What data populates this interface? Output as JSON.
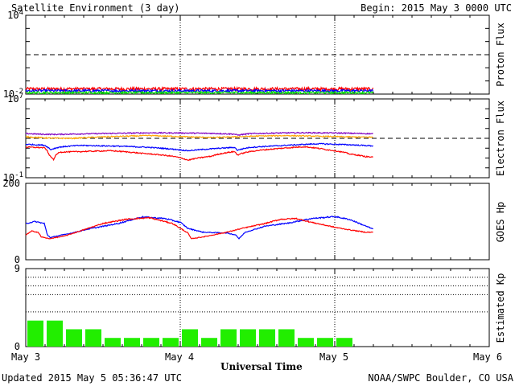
{
  "header": {
    "title": "Satellite Environment (3 day)",
    "begin": "Begin:  2015 May 3 0000 UTC"
  },
  "footer": {
    "updated": "Updated 2015 May  5 05:36:47 UTC",
    "credit": "NOAA/SWPC Boulder, CO USA"
  },
  "chart_data": [
    {
      "type": "line",
      "panel": "proton",
      "ylabel": "Proton Flux",
      "scale": "log",
      "ylim": [
        0.01,
        10000
      ],
      "yticks": [
        {
          "base": "10",
          "exp": "4"
        },
        {
          "base": "10",
          "exp": "-2"
        }
      ],
      "threshold": 10,
      "x_unit": "days since 2015 May 3 0000 UTC",
      "x_end": 2.25,
      "series": [
        {
          "color": "#ff0000",
          "base": 0.025,
          "noise": 0.28
        },
        {
          "color": "#0000ff",
          "base": 0.018,
          "noise": 0.22
        },
        {
          "color": "#00dd00",
          "base": 0.013,
          "noise": 0.18
        }
      ]
    },
    {
      "type": "line",
      "panel": "electron",
      "ylabel": "Electron Flux",
      "scale": "log",
      "ylim": [
        0.1,
        10000000
      ],
      "yticks": [
        {
          "base": "10",
          "exp": "7"
        },
        {
          "base": "10",
          "exp": "-1"
        }
      ],
      "threshold": 1000,
      "series": [
        {
          "color": "#8000c0",
          "points": [
            [
              0,
              3000
            ],
            [
              0.1,
              2600
            ],
            [
              0.2,
              2500
            ],
            [
              0.4,
              2900
            ],
            [
              0.8,
              3600
            ],
            [
              1.0,
              3500
            ],
            [
              1.2,
              3200
            ],
            [
              1.35,
              2700
            ],
            [
              1.37,
              2100
            ],
            [
              1.45,
              3000
            ],
            [
              1.65,
              3500
            ],
            [
              1.8,
              3700
            ],
            [
              2.0,
              3500
            ],
            [
              2.25,
              2900
            ]
          ]
        },
        {
          "color": "#ffa500",
          "points": [
            [
              0,
              1400
            ],
            [
              0.15,
              1050
            ],
            [
              0.3,
              1000
            ],
            [
              0.5,
              1400
            ],
            [
              0.8,
              1900
            ],
            [
              1.0,
              1500
            ],
            [
              1.2,
              1200
            ],
            [
              1.35,
              1400
            ],
            [
              1.5,
              1700
            ],
            [
              1.7,
              1900
            ],
            [
              1.9,
              1600
            ],
            [
              2.1,
              1400
            ],
            [
              2.25,
              1300
            ]
          ]
        },
        {
          "color": "#0000ff",
          "points": [
            [
              0,
              250
            ],
            [
              0.12,
              200
            ],
            [
              0.16,
              70
            ],
            [
              0.22,
              130
            ],
            [
              0.35,
              190
            ],
            [
              0.6,
              160
            ],
            [
              0.8,
              120
            ],
            [
              0.95,
              80
            ],
            [
              1.05,
              55
            ],
            [
              1.2,
              85
            ],
            [
              1.35,
              120
            ],
            [
              1.37,
              60
            ],
            [
              1.45,
              120
            ],
            [
              1.65,
              180
            ],
            [
              1.9,
              280
            ],
            [
              2.1,
              220
            ],
            [
              2.25,
              170
            ]
          ]
        },
        {
          "color": "#ff0000",
          "points": [
            [
              0,
              130
            ],
            [
              0.12,
              110
            ],
            [
              0.15,
              20
            ],
            [
              0.18,
              6
            ],
            [
              0.22,
              40
            ],
            [
              0.35,
              45
            ],
            [
              0.55,
              55
            ],
            [
              0.75,
              30
            ],
            [
              0.95,
              15
            ],
            [
              1.05,
              6
            ],
            [
              1.2,
              15
            ],
            [
              1.35,
              45
            ],
            [
              1.37,
              20
            ],
            [
              1.45,
              45
            ],
            [
              1.65,
              95
            ],
            [
              1.8,
              140
            ],
            [
              1.95,
              70
            ],
            [
              2.1,
              25
            ],
            [
              2.2,
              14
            ],
            [
              2.25,
              12
            ]
          ]
        }
      ]
    },
    {
      "type": "line",
      "panel": "goes",
      "ylabel": "GOES Hp",
      "scale": "linear",
      "ylim": [
        0,
        200
      ],
      "yticks": [
        200,
        0
      ],
      "series": [
        {
          "color": "#0000ff",
          "points": [
            [
              0,
              95
            ],
            [
              0.06,
              100
            ],
            [
              0.12,
              95
            ],
            [
              0.14,
              65
            ],
            [
              0.16,
              58
            ],
            [
              0.2,
              62
            ],
            [
              0.3,
              70
            ],
            [
              0.4,
              80
            ],
            [
              0.6,
              95
            ],
            [
              0.75,
              112
            ],
            [
              0.9,
              108
            ],
            [
              1.0,
              98
            ],
            [
              1.05,
              82
            ],
            [
              1.15,
              72
            ],
            [
              1.3,
              70
            ],
            [
              1.36,
              65
            ],
            [
              1.38,
              55
            ],
            [
              1.42,
              72
            ],
            [
              1.55,
              88
            ],
            [
              1.7,
              96
            ],
            [
              1.85,
              108
            ],
            [
              2.0,
              113
            ],
            [
              2.1,
              105
            ],
            [
              2.25,
              80
            ]
          ]
        },
        {
          "color": "#ff0000",
          "points": [
            [
              0,
              65
            ],
            [
              0.04,
              75
            ],
            [
              0.08,
              72
            ],
            [
              0.1,
              60
            ],
            [
              0.15,
              55
            ],
            [
              0.25,
              62
            ],
            [
              0.35,
              75
            ],
            [
              0.5,
              95
            ],
            [
              0.65,
              106
            ],
            [
              0.8,
              110
            ],
            [
              0.95,
              95
            ],
            [
              1.05,
              70
            ],
            [
              1.07,
              55
            ],
            [
              1.15,
              60
            ],
            [
              1.3,
              72
            ],
            [
              1.4,
              82
            ],
            [
              1.55,
              95
            ],
            [
              1.65,
              106
            ],
            [
              1.75,
              108
            ],
            [
              1.85,
              98
            ],
            [
              2.0,
              85
            ],
            [
              2.1,
              78
            ],
            [
              2.2,
              72
            ],
            [
              2.25,
              72
            ]
          ]
        }
      ]
    },
    {
      "type": "bar",
      "panel": "kp",
      "ylabel": "Estimated Kp",
      "ylim": [
        0,
        9
      ],
      "yticks": [
        9,
        0
      ],
      "gridlines": [
        4,
        6,
        7,
        8
      ],
      "bar_color": "#22ee00",
      "bar_width": 0.125,
      "values": [
        3,
        3,
        2,
        2,
        1,
        1,
        1,
        1,
        2,
        1,
        2,
        2,
        2,
        2,
        1,
        1,
        1
      ]
    }
  ],
  "xaxis": {
    "label": "Universal Time",
    "ticks": [
      "May 3",
      "May 4",
      "May 5",
      "May 6"
    ]
  }
}
